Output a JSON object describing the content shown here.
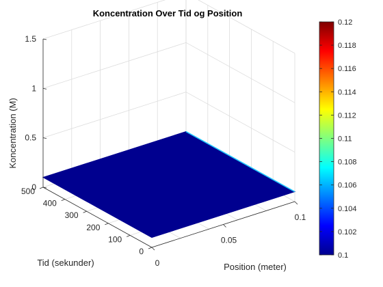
{
  "chart_data": {
    "type": "surface",
    "title": "Koncentration Over Tid og Position",
    "xlabel": "Position (meter)",
    "ylabel": "Tid (sekunder)",
    "zlabel": "Koncentration (M)",
    "xlim": [
      0,
      0.1
    ],
    "ylim": [
      0,
      500
    ],
    "zlim": [
      0,
      1.5
    ],
    "xticks": [
      "0",
      "0.05",
      "0.1"
    ],
    "yticks": [
      "0",
      "100",
      "200",
      "300",
      "400",
      "500"
    ],
    "zticks": [
      "0",
      "0.5",
      "1",
      "1.5"
    ],
    "surface": {
      "value_range": [
        0.1,
        0.1
      ],
      "edge_value_at_max_position": 0.105,
      "color": "#00008f"
    },
    "colorbar": {
      "colormap": "jet",
      "range": [
        0.1,
        0.12
      ],
      "ticks": [
        "0.1",
        "0.102",
        "0.104",
        "0.106",
        "0.108",
        "0.11",
        "0.112",
        "0.114",
        "0.116",
        "0.118",
        "0.12"
      ]
    },
    "grid": true
  }
}
